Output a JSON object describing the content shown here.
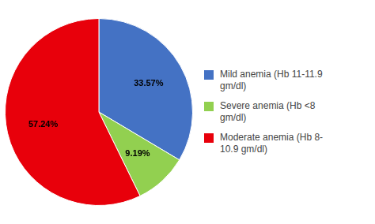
{
  "chart_data": {
    "type": "pie",
    "categories": [
      "Mild anemia (Hb 11-11.9\ngm/dl)",
      "Severe anemia (Hb <8\ngm/dl)",
      "Moderate anemia (Hb 8-\n10.9 gm/dl)"
    ],
    "values": [
      33.57,
      9.19,
      57.24
    ],
    "value_labels": [
      "33.57%",
      "9.19%",
      "57.24%"
    ],
    "colors": [
      "#4472C4",
      "#92D050",
      "#E8000B"
    ],
    "data_labels": true,
    "legend": "right"
  }
}
